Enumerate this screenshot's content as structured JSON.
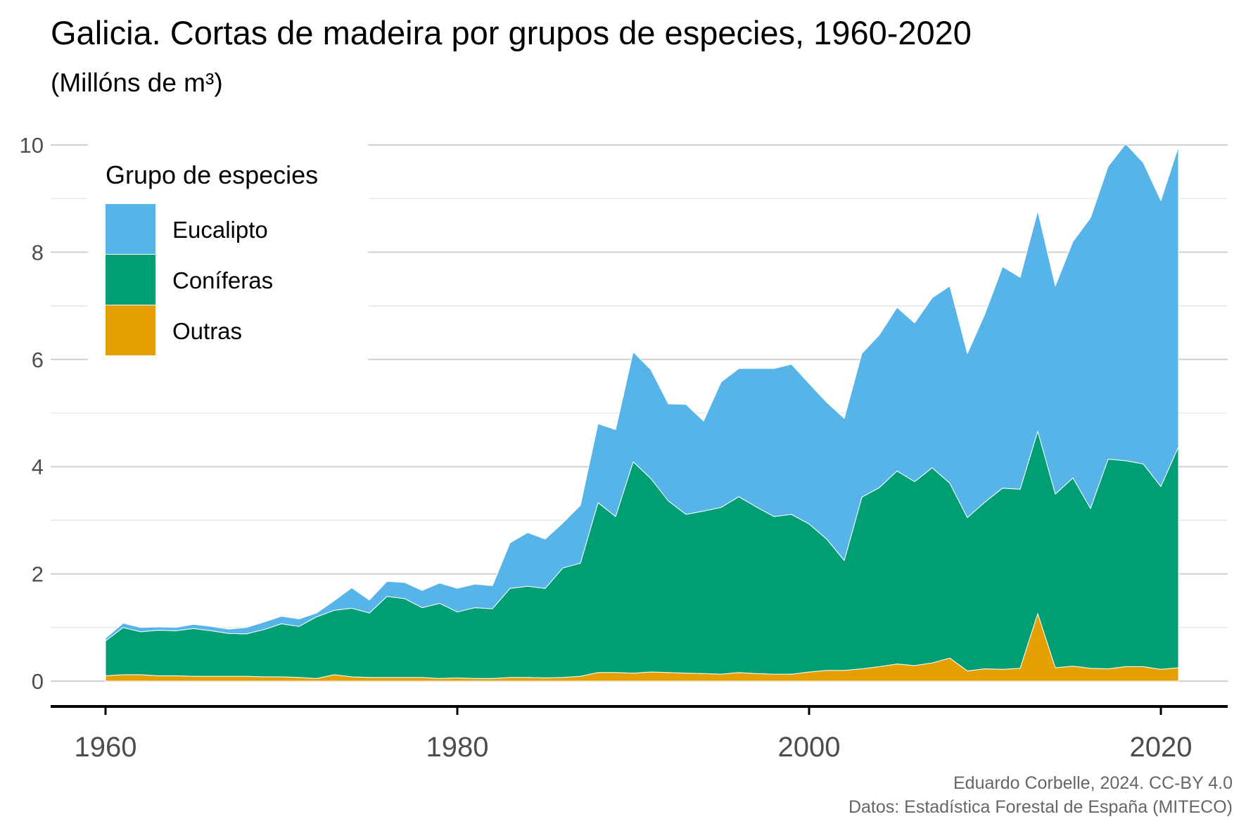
{
  "colors": {
    "Eucalipto": "#56B4E9",
    "Coníferas": "#009E73",
    "Outras": "#E69F00",
    "grid_major": "#d0d0d0",
    "grid_minor": "#e4e4e4",
    "axis": "#000000"
  },
  "chart_data": {
    "type": "area",
    "stacked": true,
    "title": "Galicia. Cortas de madeira por grupos de especies, 1960-2020",
    "subtitle": "(Millóns de m³)",
    "xlabel": "",
    "ylabel": "",
    "xlim": [
      1955,
      2024
    ],
    "ylim": [
      -0.3,
      10.1
    ],
    "x_ticks": [
      1960,
      1980,
      2000,
      2020
    ],
    "y_ticks": [
      0,
      2,
      4,
      6,
      8,
      10
    ],
    "grid": "horizontal",
    "legend": {
      "title": "Grupo de especies",
      "placement": "top-left",
      "entries": [
        "Eucalipto",
        "Coníferas",
        "Outras"
      ]
    },
    "x": [
      1960,
      1961,
      1962,
      1963,
      1964,
      1965,
      1966,
      1967,
      1968,
      1969,
      1970,
      1971,
      1972,
      1973,
      1974,
      1975,
      1976,
      1977,
      1978,
      1979,
      1980,
      1981,
      1982,
      1983,
      1984,
      1985,
      1986,
      1987,
      1988,
      1989,
      1990,
      1991,
      1992,
      1993,
      1994,
      1995,
      1996,
      1997,
      1998,
      1999,
      2000,
      2001,
      2002,
      2003,
      2004,
      2005,
      2006,
      2007,
      2008,
      2009,
      2010,
      2011,
      2012,
      2013,
      2014,
      2015,
      2016,
      2017,
      2018,
      2019,
      2020,
      2021
    ],
    "series": [
      {
        "name": "Outras",
        "values": [
          0.1,
          0.12,
          0.12,
          0.1,
          0.1,
          0.09,
          0.09,
          0.09,
          0.09,
          0.08,
          0.08,
          0.07,
          0.05,
          0.12,
          0.08,
          0.07,
          0.07,
          0.07,
          0.07,
          0.05,
          0.06,
          0.05,
          0.05,
          0.07,
          0.07,
          0.06,
          0.07,
          0.09,
          0.16,
          0.16,
          0.15,
          0.17,
          0.16,
          0.15,
          0.14,
          0.13,
          0.16,
          0.14,
          0.13,
          0.13,
          0.17,
          0.2,
          0.2,
          0.23,
          0.27,
          0.32,
          0.29,
          0.34,
          0.43,
          0.19,
          0.23,
          0.22,
          0.24,
          1.26,
          0.25,
          0.28,
          0.24,
          0.23,
          0.27,
          0.27,
          0.22,
          0.25
        ]
      },
      {
        "name": "Coníferas",
        "values": [
          0.65,
          0.88,
          0.8,
          0.85,
          0.84,
          0.89,
          0.85,
          0.8,
          0.79,
          0.88,
          0.99,
          0.95,
          1.15,
          1.2,
          1.28,
          1.2,
          1.51,
          1.47,
          1.3,
          1.4,
          1.23,
          1.32,
          1.3,
          1.66,
          1.7,
          1.67,
          2.04,
          2.11,
          3.17,
          2.91,
          3.94,
          3.61,
          3.2,
          2.96,
          3.03,
          3.11,
          3.28,
          3.11,
          2.94,
          2.98,
          2.76,
          2.45,
          2.05,
          3.2,
          3.34,
          3.6,
          3.43,
          3.64,
          3.26,
          2.86,
          3.11,
          3.38,
          3.34,
          3.4,
          3.24,
          3.51,
          2.98,
          3.91,
          3.84,
          3.78,
          3.41,
          4.12
        ]
      },
      {
        "name": "Eucalipto",
        "values": [
          0.05,
          0.08,
          0.08,
          0.06,
          0.06,
          0.08,
          0.08,
          0.08,
          0.12,
          0.14,
          0.14,
          0.14,
          0.07,
          0.18,
          0.38,
          0.24,
          0.28,
          0.3,
          0.32,
          0.38,
          0.44,
          0.44,
          0.43,
          0.85,
          1.0,
          0.92,
          0.84,
          1.08,
          1.47,
          1.62,
          2.05,
          2.03,
          1.81,
          2.05,
          1.68,
          2.34,
          2.39,
          2.58,
          2.76,
          2.8,
          2.62,
          2.55,
          2.65,
          2.68,
          2.85,
          3.05,
          2.96,
          3.17,
          3.68,
          3.06,
          3.51,
          4.13,
          3.95,
          4.11,
          3.88,
          4.41,
          5.42,
          5.46,
          5.91,
          5.62,
          5.33,
          5.6
        ]
      }
    ]
  },
  "caption": {
    "line1": "Eduardo Corbelle, 2024. CC-BY 4.0",
    "line2": "Datos: Estadística Forestal de España (MITECO)"
  }
}
